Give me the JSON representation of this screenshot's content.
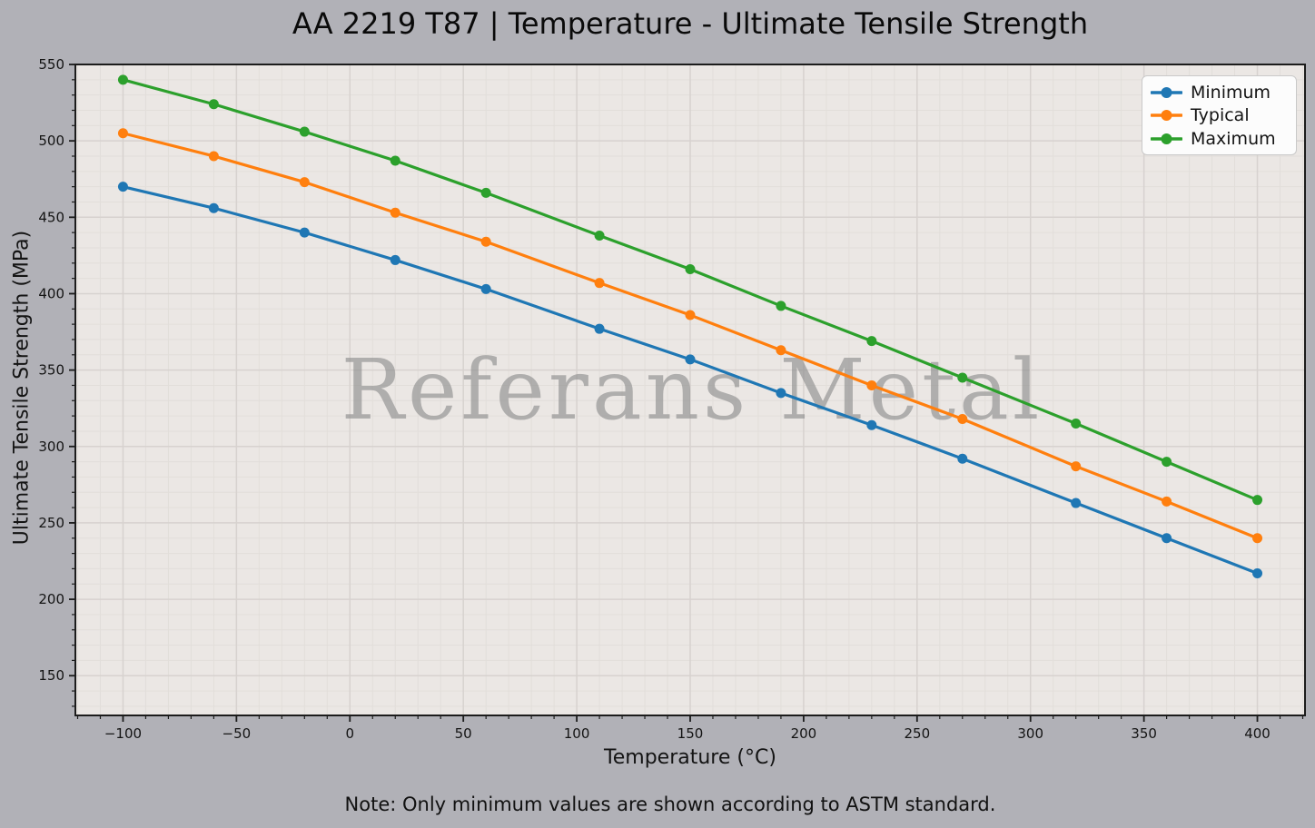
{
  "watermark": "Referans Metal",
  "note": "Note: Only minimum values are shown according to ASTM standard.",
  "chart_data": {
    "type": "line",
    "title": "AA 2219 T87 | Temperature - Ultimate Tensile Strength",
    "xlabel": "Temperature (°C)",
    "ylabel": "Ultimate Tensile Strength (MPa)",
    "x": [
      -100,
      -60,
      -20,
      20,
      60,
      110,
      150,
      190,
      230,
      270,
      320,
      360,
      400
    ],
    "series": [
      {
        "name": "Minimum",
        "color": "#1f77b4",
        "values": [
          470,
          456,
          440,
          422,
          403,
          377,
          357,
          335,
          314,
          292,
          263,
          240,
          217
        ]
      },
      {
        "name": "Typical",
        "color": "#ff7f0e",
        "values": [
          505,
          490,
          473,
          453,
          434,
          407,
          386,
          363,
          340,
          318,
          287,
          264,
          240
        ]
      },
      {
        "name": "Maximum",
        "color": "#2ca02c",
        "values": [
          540,
          524,
          506,
          487,
          466,
          438,
          416,
          392,
          369,
          345,
          315,
          290,
          265
        ]
      }
    ],
    "x_ticks": [
      -100,
      -50,
      0,
      50,
      100,
      150,
      200,
      250,
      300,
      350,
      400
    ],
    "y_ticks": [
      150,
      200,
      250,
      300,
      350,
      400,
      450,
      500,
      550
    ],
    "xlim": [
      -121,
      421
    ],
    "ylim": [
      124,
      550
    ],
    "minor_tick_step_x": 10,
    "minor_tick_step_y": 10,
    "grid": true,
    "legend_position": "upper right",
    "legend_entries": [
      "Minimum",
      "Typical",
      "Maximum"
    ]
  },
  "colors": {
    "figure_background": "#b1b1b7",
    "plot_background": "#ebe7e4",
    "grid_major": "#d7d2cf",
    "grid_minor": "#e2deda",
    "spine": "#1c1c1c",
    "tick": "#1c1c1c",
    "text": "#141414",
    "watermark": "#8c8c8c",
    "legend_background": "#fcfcfc",
    "legend_border": "#c9c9c9"
  }
}
